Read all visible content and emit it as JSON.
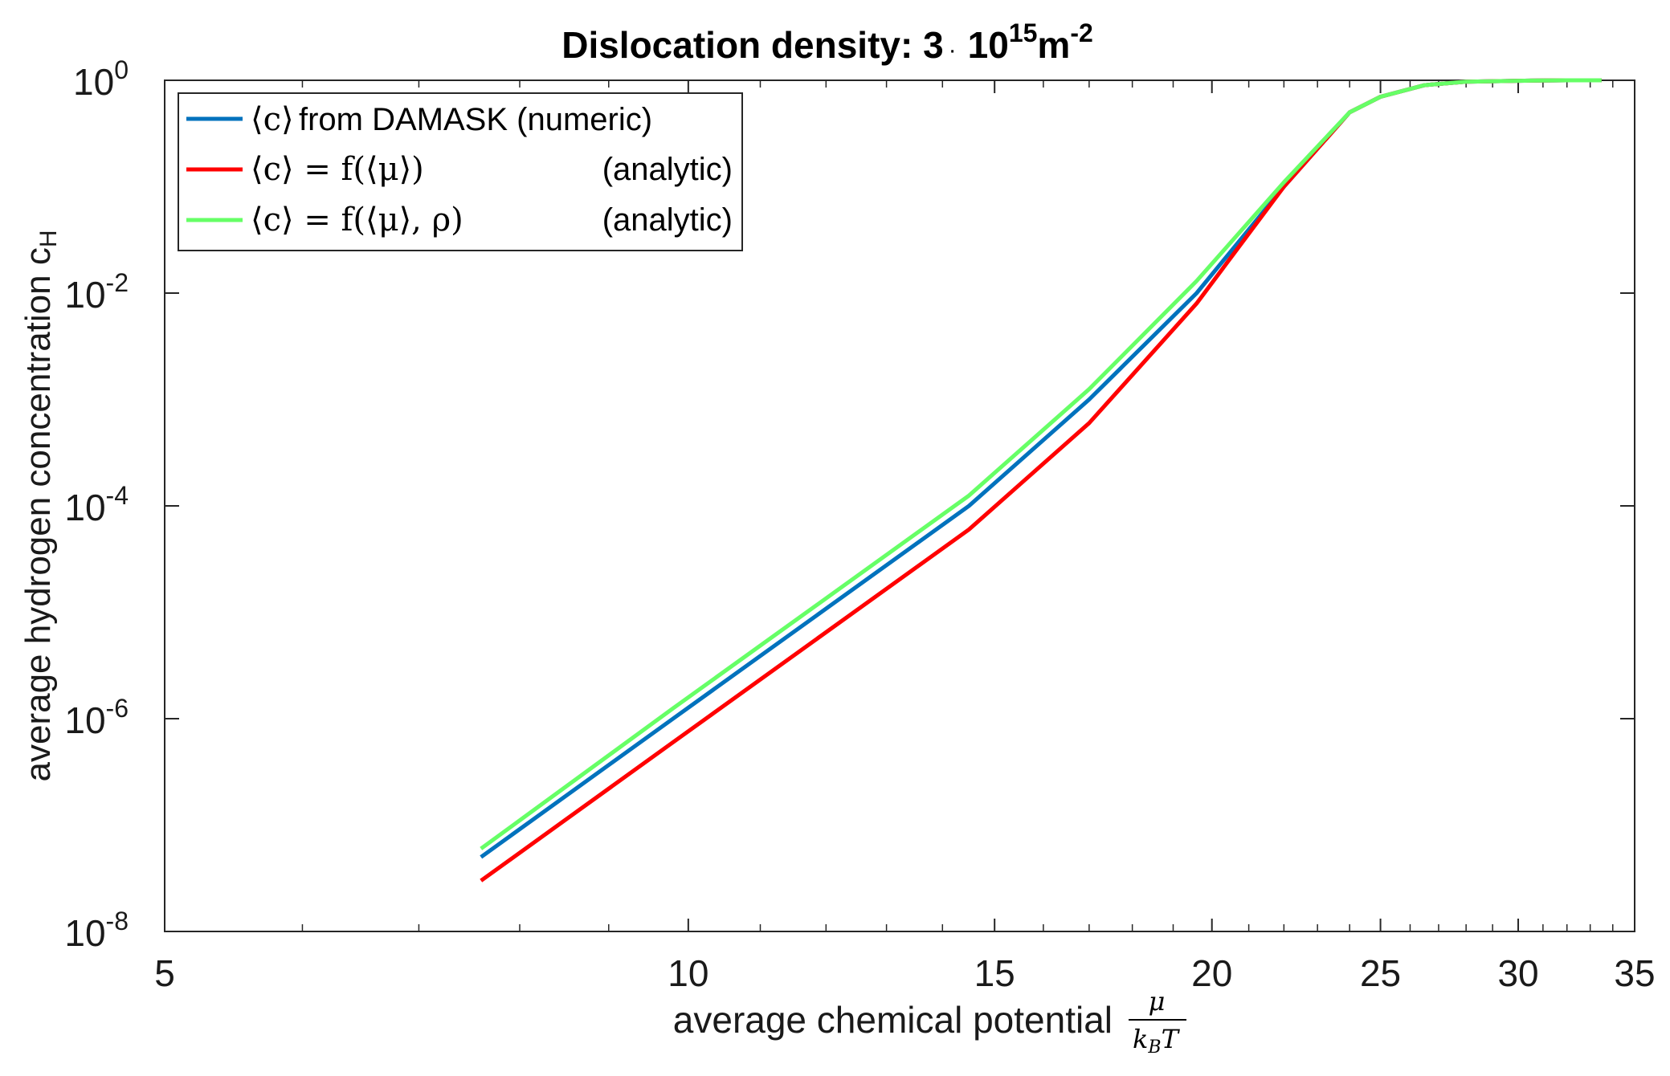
{
  "chart_data": {
    "type": "line",
    "title": "Dislocation density: 3",
    "title_parts": {
      "prefix": "Dislocation density: 3",
      "dot": "·",
      "base": "10",
      "exponent": "15",
      "unit": "m",
      "unit_exponent": "-2"
    },
    "xlabel": "average chemical potential",
    "xlabel_fraction": {
      "numerator": "μ",
      "denominator": "k",
      "denominator_sub": "B",
      "denominator_tail": "T"
    },
    "ylabel": "average hydrogen concentration c",
    "ylabel_sub": "H",
    "x_scale": "log",
    "y_scale": "log",
    "xlim": [
      5,
      35
    ],
    "ylim": [
      1e-08,
      1
    ],
    "x_ticks": [
      5,
      10,
      15,
      20,
      25,
      30,
      35
    ],
    "x_tick_labels": [
      "5",
      "10",
      "15",
      "20",
      "25",
      "30",
      "35"
    ],
    "y_ticks": [
      1e-08,
      1e-06,
      0.0001,
      0.01,
      1
    ],
    "y_tick_labels": [
      {
        "base": "10",
        "exp": "-8"
      },
      {
        "base": "10",
        "exp": "-6"
      },
      {
        "base": "10",
        "exp": "-4"
      },
      {
        "base": "10",
        "exp": "-2"
      },
      {
        "base": "10",
        "exp": "0"
      }
    ],
    "grid": false,
    "legend_position": "top-left",
    "series": [
      {
        "name": "⟨c⟩ from DAMASK (numeric)",
        "legend_math": "⟨c⟩",
        "legend_text": "from DAMASK (numeric)",
        "legend_note": "",
        "color": "#0072bd",
        "x": [
          7.6,
          9.8,
          14.5,
          17.0,
          19.6,
          22.0,
          24.0,
          25.0,
          26.5,
          28.0,
          30.0,
          32.0,
          33.5
        ],
        "y": [
          5e-08,
          1e-06,
          0.0001,
          0.001,
          0.01,
          0.1,
          0.5,
          0.7,
          0.9,
          0.97,
          0.99,
          1.0,
          1.0
        ]
      },
      {
        "name": "⟨c⟩ = f(⟨μ⟩) (analytic)",
        "legend_math": "⟨c⟩ = f(⟨μ⟩)",
        "legend_text": "",
        "legend_note": "(analytic)",
        "color": "#ff0000",
        "x": [
          7.6,
          9.8,
          14.5,
          17.0,
          19.6,
          22.0,
          24.0,
          25.0,
          26.5,
          28.0,
          30.0,
          32.0,
          33.5
        ],
        "y": [
          3e-08,
          6e-07,
          6e-05,
          0.0006,
          0.008,
          0.1,
          0.5,
          0.7,
          0.9,
          0.97,
          0.99,
          1.0,
          1.0
        ]
      },
      {
        "name": "⟨c⟩ = f(⟨μ⟩, ρ) (analytic)",
        "legend_math": "⟨c⟩ = f(⟨μ⟩, ρ)",
        "legend_text": "",
        "legend_note": "(analytic)",
        "color": "#66ff66",
        "x": [
          7.6,
          9.8,
          14.5,
          17.0,
          19.6,
          22.0,
          24.0,
          25.0,
          26.5,
          28.0,
          30.0,
          32.0,
          33.5
        ],
        "y": [
          6e-08,
          1.25e-06,
          0.000125,
          0.00125,
          0.013,
          0.11,
          0.5,
          0.7,
          0.9,
          0.97,
          0.99,
          1.0,
          1.0
        ]
      }
    ]
  }
}
